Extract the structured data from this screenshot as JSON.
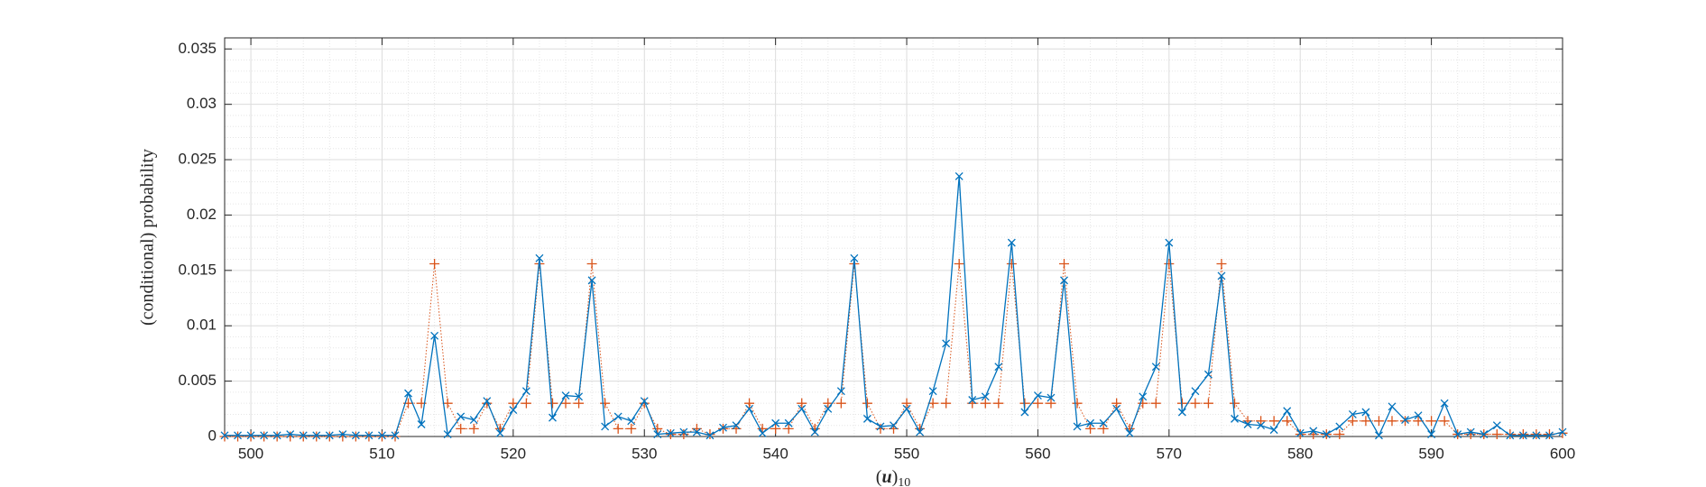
{
  "chart_data": {
    "type": "line",
    "xlabel_parts": [
      "(",
      "u",
      ")",
      "10"
    ],
    "ylabel": "(conditional) probability",
    "x": [
      498,
      499,
      500,
      501,
      502,
      503,
      504,
      505,
      506,
      507,
      508,
      509,
      510,
      511,
      512,
      513,
      514,
      515,
      516,
      517,
      518,
      519,
      520,
      521,
      522,
      523,
      524,
      525,
      526,
      527,
      528,
      529,
      530,
      531,
      532,
      533,
      534,
      535,
      536,
      537,
      538,
      539,
      540,
      541,
      542,
      543,
      544,
      545,
      546,
      547,
      548,
      549,
      550,
      551,
      552,
      553,
      554,
      555,
      556,
      557,
      558,
      559,
      560,
      561,
      562,
      563,
      564,
      565,
      566,
      567,
      568,
      569,
      570,
      571,
      572,
      573,
      574,
      575,
      576,
      577,
      578,
      579,
      580,
      581,
      582,
      583,
      584,
      585,
      586,
      587,
      588,
      589,
      590,
      591,
      592,
      593,
      594,
      595,
      596,
      597,
      598,
      599,
      600
    ],
    "series": [
      {
        "color": "#D95319",
        "marker": "+",
        "linestyle": "dotted",
        "values": [
          0,
          0,
          0,
          0,
          0,
          0,
          0,
          0,
          0,
          0,
          0,
          0,
          0,
          0,
          0.003,
          0.003,
          0.0156,
          0.003,
          0.0007,
          0.0007,
          0.003,
          0.0007,
          0.003,
          0.003,
          0.0156,
          0.003,
          0.003,
          0.003,
          0.0156,
          0.003,
          0.0007,
          0.0007,
          0.003,
          0.0007,
          0.0002,
          0.0002,
          0.0007,
          0.0002,
          0.0007,
          0.0007,
          0.003,
          0.0007,
          0.0007,
          0.0007,
          0.003,
          0.0007,
          0.003,
          0.003,
          0.0156,
          0.003,
          0.0007,
          0.0007,
          0.003,
          0.0007,
          0.003,
          0.003,
          0.0156,
          0.003,
          0.003,
          0.003,
          0.0156,
          0.003,
          0.003,
          0.003,
          0.0156,
          0.003,
          0.0007,
          0.0007,
          0.003,
          0.0007,
          0.003,
          0.003,
          0.0156,
          0.003,
          0.003,
          0.003,
          0.0156,
          0.003,
          0.0014,
          0.0014,
          0.0014,
          0.0014,
          0.0002,
          0.0002,
          0.0002,
          0.0002,
          0.0014,
          0.0014,
          0.0014,
          0.0014,
          0.0014,
          0.0014,
          0.0014,
          0.0014,
          0.0002,
          0.0002,
          0.0002,
          0.0002,
          0.0002,
          0.0002,
          0.0002,
          0.0002,
          0.0003
        ]
      },
      {
        "color": "#0072BD",
        "marker": "x",
        "linestyle": "solid",
        "values": [
          0.0001,
          0.0001,
          0.0001,
          0.0001,
          0.0001,
          0.0002,
          0.0001,
          0.0001,
          0.0001,
          0.0002,
          0.0001,
          0.0001,
          0.0001,
          0.0001,
          0.0039,
          0.0011,
          0.0091,
          0.0002,
          0.0018,
          0.0015,
          0.0032,
          0.0003,
          0.0024,
          0.0041,
          0.0161,
          0.0017,
          0.0037,
          0.0036,
          0.0141,
          0.0009,
          0.0018,
          0.0014,
          0.0032,
          0.0002,
          0.0003,
          0.0004,
          0.0004,
          0.0001,
          0.0008,
          0.001,
          0.0025,
          0.0003,
          0.0012,
          0.0012,
          0.0025,
          0.0004,
          0.0025,
          0.0041,
          0.0161,
          0.0016,
          0.0009,
          0.001,
          0.0025,
          0.0004,
          0.0041,
          0.0084,
          0.0235,
          0.0033,
          0.0036,
          0.0063,
          0.0175,
          0.0022,
          0.0037,
          0.0035,
          0.0141,
          0.0009,
          0.0012,
          0.0012,
          0.0025,
          0.0003,
          0.0036,
          0.0063,
          0.0175,
          0.0022,
          0.0041,
          0.0056,
          0.0145,
          0.0016,
          0.0011,
          0.001,
          0.0006,
          0.0023,
          0.0003,
          0.0005,
          0.0002,
          0.0009,
          0.002,
          0.0022,
          0.0001,
          0.0027,
          0.0015,
          0.0019,
          0.0002,
          0.003,
          0.0002,
          0.0004,
          0.0002,
          0.001,
          0.0001,
          0.0001,
          0.0001,
          0.0001,
          0.0004
        ]
      }
    ],
    "xlim": [
      498,
      600
    ],
    "ylim": [
      0,
      0.036
    ],
    "xticks": [
      500,
      510,
      520,
      530,
      540,
      550,
      560,
      570,
      580,
      590,
      600
    ],
    "yticks": [
      0,
      0.005,
      0.01,
      0.015,
      0.02,
      0.025,
      0.03,
      0.035
    ],
    "grid": true,
    "minor_grid": true
  }
}
